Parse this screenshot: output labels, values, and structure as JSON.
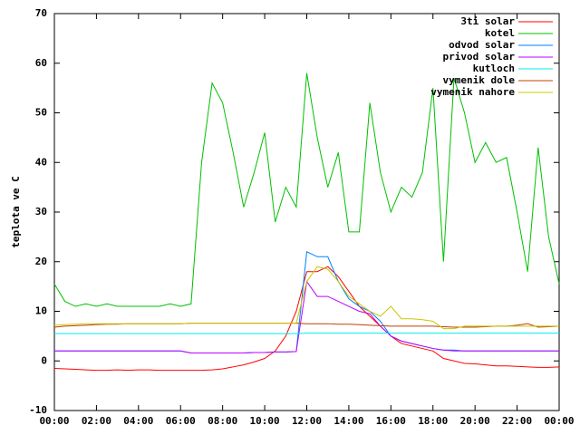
{
  "chart_data": {
    "type": "line",
    "y_label": "teplota ve C",
    "x": [
      0,
      0.5,
      1,
      1.5,
      2,
      2.5,
      3,
      3.5,
      4,
      4.5,
      5,
      5.5,
      6,
      6.5,
      7,
      7.5,
      8,
      8.5,
      9,
      9.5,
      10,
      10.5,
      11,
      11.5,
      12,
      12.5,
      13,
      13.5,
      14,
      14.5,
      15,
      15.5,
      16,
      16.5,
      17,
      17.5,
      18,
      18.5,
      19,
      19.5,
      20,
      20.5,
      21,
      21.5,
      22,
      22.5,
      23,
      23.5,
      24
    ],
    "xlim": [
      0,
      24
    ],
    "xticks": [
      {
        "value": 0,
        "label": "00:00"
      },
      {
        "value": 2,
        "label": "02:00"
      },
      {
        "value": 4,
        "label": "04:00"
      },
      {
        "value": 6,
        "label": "06:00"
      },
      {
        "value": 8,
        "label": "08:00"
      },
      {
        "value": 10,
        "label": "10:00"
      },
      {
        "value": 12,
        "label": "12:00"
      },
      {
        "value": 14,
        "label": "14:00"
      },
      {
        "value": 16,
        "label": "16:00"
      },
      {
        "value": 18,
        "label": "18:00"
      },
      {
        "value": 20,
        "label": "20:00"
      },
      {
        "value": 22,
        "label": "22:00"
      },
      {
        "value": 24,
        "label": "00:00"
      }
    ],
    "ylim": [
      -10,
      70
    ],
    "yticks": [
      -10,
      0,
      10,
      20,
      30,
      40,
      50,
      60,
      70
    ],
    "legend": "top-right",
    "series": [
      {
        "name": "3ti solar",
        "color": "#ff0000",
        "values": [
          -1.5,
          -1.6,
          -1.7,
          -1.8,
          -1.9,
          -1.9,
          -1.8,
          -1.9,
          -1.8,
          -1.8,
          -1.9,
          -1.9,
          -1.9,
          -1.9,
          -1.9,
          -1.8,
          -1.6,
          -1.2,
          -0.8,
          -0.2,
          0.5,
          2,
          5,
          10,
          18,
          18,
          19,
          17,
          14,
          11,
          9,
          7,
          5,
          3.5,
          3,
          2.5,
          2,
          0.5,
          0,
          -0.5,
          -0.6,
          -0.8,
          -1,
          -1,
          -1.1,
          -1.2,
          -1.3,
          -1.3,
          -1.2
        ]
      },
      {
        "name": "kotel",
        "color": "#00c000",
        "values": [
          15.5,
          12,
          11,
          11.5,
          11,
          11.5,
          11,
          11,
          11,
          11,
          11,
          11.5,
          11,
          11.5,
          40,
          56,
          52,
          42,
          31,
          38,
          46,
          28,
          35,
          31,
          58,
          45,
          35,
          42,
          26,
          26,
          52,
          38,
          30,
          35,
          33,
          38,
          55,
          20,
          57,
          50,
          40,
          44,
          40,
          41,
          30,
          18,
          43,
          25,
          15.5
        ]
      },
      {
        "name": "odvod solar",
        "color": "#0080ff",
        "values": [
          2,
          2,
          2,
          2,
          2,
          2,
          2,
          2,
          2,
          2,
          2,
          2,
          2,
          1.6,
          1.6,
          1.6,
          1.6,
          1.6,
          1.6,
          1.7,
          1.7,
          1.8,
          1.8,
          1.9,
          22,
          21,
          21,
          16,
          12.5,
          11,
          10,
          8,
          5,
          4,
          3.5,
          3,
          2.5,
          2.2,
          2.2,
          2,
          2,
          2,
          2,
          2,
          2,
          2,
          2,
          2,
          2
        ]
      },
      {
        "name": "privod solar",
        "color": "#c000ff",
        "values": [
          2,
          2,
          2,
          2,
          2,
          2,
          2,
          2,
          2,
          2,
          2,
          2,
          2,
          1.6,
          1.6,
          1.6,
          1.6,
          1.6,
          1.6,
          1.7,
          1.7,
          1.8,
          1.8,
          1.9,
          16,
          13,
          13,
          12,
          11,
          10,
          9.5,
          7,
          5,
          4,
          3.5,
          3,
          2.5,
          2.2,
          2,
          2,
          2,
          2,
          2,
          2,
          2,
          2,
          2,
          2,
          2
        ]
      },
      {
        "name": "kutloch",
        "color": "#00eeee",
        "values": [
          5.5,
          5.5,
          5.5,
          5.5,
          5.5,
          5.5,
          5.5,
          5.5,
          5.5,
          5.5,
          5.5,
          5.5,
          5.5,
          5.5,
          5.5,
          5.5,
          5.5,
          5.5,
          5.5,
          5.5,
          5.5,
          5.5,
          5.5,
          5.5,
          5.6,
          5.6,
          5.6,
          5.6,
          5.6,
          5.6,
          5.6,
          5.6,
          5.6,
          5.6,
          5.6,
          5.6,
          5.6,
          5.6,
          5.6,
          5.6,
          5.6,
          5.6,
          5.6,
          5.6,
          5.6,
          5.6,
          5.6,
          5.6,
          5.6
        ]
      },
      {
        "name": "vymenik dole",
        "color": "#c04000",
        "values": [
          6.8,
          7,
          7.1,
          7.2,
          7.3,
          7.4,
          7.4,
          7.5,
          7.5,
          7.5,
          7.5,
          7.5,
          7.5,
          7.6,
          7.6,
          7.6,
          7.6,
          7.6,
          7.6,
          7.6,
          7.6,
          7.6,
          7.6,
          7.6,
          7.5,
          7.5,
          7.5,
          7.4,
          7.4,
          7.3,
          7.2,
          7.1,
          7,
          7,
          7,
          7,
          7,
          6.9,
          6.8,
          6.8,
          6.8,
          6.9,
          7,
          7,
          7.2,
          7.5,
          6.8,
          6.9,
          7
        ]
      },
      {
        "name": "vymenik nahore",
        "color": "#c8c800",
        "values": [
          7.2,
          7.3,
          7.4,
          7.5,
          7.5,
          7.5,
          7.5,
          7.5,
          7.5,
          7.5,
          7.5,
          7.5,
          7.5,
          7.6,
          7.6,
          7.6,
          7.6,
          7.6,
          7.6,
          7.6,
          7.6,
          7.6,
          7.6,
          7.6,
          16,
          19,
          18.5,
          16,
          13,
          11.5,
          10,
          9,
          11,
          8.5,
          8.5,
          8.3,
          8,
          6.5,
          6.5,
          7,
          7,
          7,
          7,
          7,
          7,
          7,
          7,
          7,
          7
        ]
      }
    ]
  }
}
